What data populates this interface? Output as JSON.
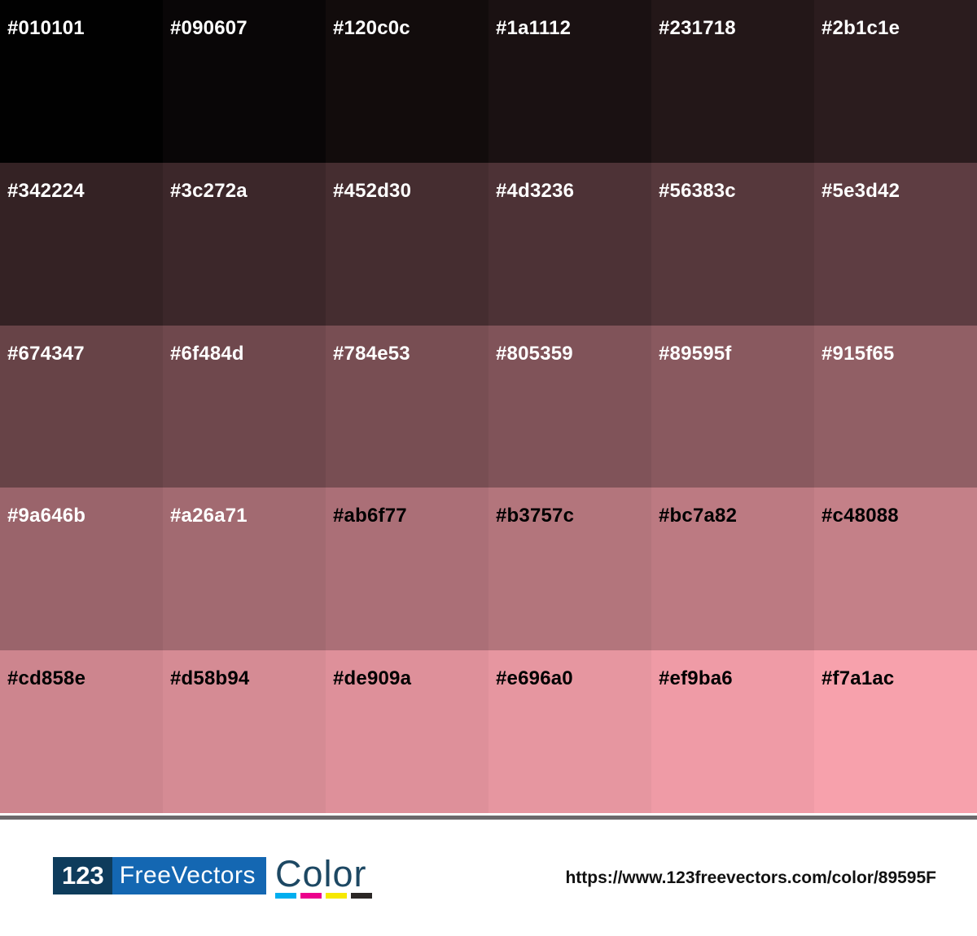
{
  "palette": {
    "rows": 5,
    "cols": 6,
    "swatches": [
      {
        "hex": "#010101",
        "label_color": "#ffffff"
      },
      {
        "hex": "#090607",
        "label_color": "#ffffff"
      },
      {
        "hex": "#120c0c",
        "label_color": "#ffffff"
      },
      {
        "hex": "#1a1112",
        "label_color": "#ffffff"
      },
      {
        "hex": "#231718",
        "label_color": "#ffffff"
      },
      {
        "hex": "#2b1c1e",
        "label_color": "#ffffff"
      },
      {
        "hex": "#342224",
        "label_color": "#ffffff"
      },
      {
        "hex": "#3c272a",
        "label_color": "#ffffff"
      },
      {
        "hex": "#452d30",
        "label_color": "#ffffff"
      },
      {
        "hex": "#4d3236",
        "label_color": "#ffffff"
      },
      {
        "hex": "#56383c",
        "label_color": "#ffffff"
      },
      {
        "hex": "#5e3d42",
        "label_color": "#ffffff"
      },
      {
        "hex": "#674347",
        "label_color": "#ffffff"
      },
      {
        "hex": "#6f484d",
        "label_color": "#ffffff"
      },
      {
        "hex": "#784e53",
        "label_color": "#ffffff"
      },
      {
        "hex": "#805359",
        "label_color": "#ffffff"
      },
      {
        "hex": "#89595f",
        "label_color": "#ffffff"
      },
      {
        "hex": "#915f65",
        "label_color": "#ffffff"
      },
      {
        "hex": "#9a646b",
        "label_color": "#ffffff"
      },
      {
        "hex": "#a26a71",
        "label_color": "#ffffff"
      },
      {
        "hex": "#ab6f77",
        "label_color": "#000000"
      },
      {
        "hex": "#b3757c",
        "label_color": "#000000"
      },
      {
        "hex": "#bc7a82",
        "label_color": "#000000"
      },
      {
        "hex": "#c48088",
        "label_color": "#000000"
      },
      {
        "hex": "#cd858e",
        "label_color": "#000000"
      },
      {
        "hex": "#d58b94",
        "label_color": "#000000"
      },
      {
        "hex": "#de909a",
        "label_color": "#000000"
      },
      {
        "hex": "#e696a0",
        "label_color": "#000000"
      },
      {
        "hex": "#ef9ba6",
        "label_color": "#000000"
      },
      {
        "hex": "#f7a1ac",
        "label_color": "#000000"
      }
    ]
  },
  "divider": {
    "color": "#6b686b"
  },
  "footer": {
    "logo": {
      "number": "123",
      "name": "FreeVectors",
      "word": "Color",
      "number_bg": "#0e3c5c",
      "name_bg": "#1467b2",
      "word_color": "#1d4863",
      "cmyk_bar_colors": [
        "#00aeef",
        "#ec008c",
        "#f6e800",
        "#2b2725"
      ]
    },
    "url": "https://www.123freevectors.com/color/89595F"
  }
}
